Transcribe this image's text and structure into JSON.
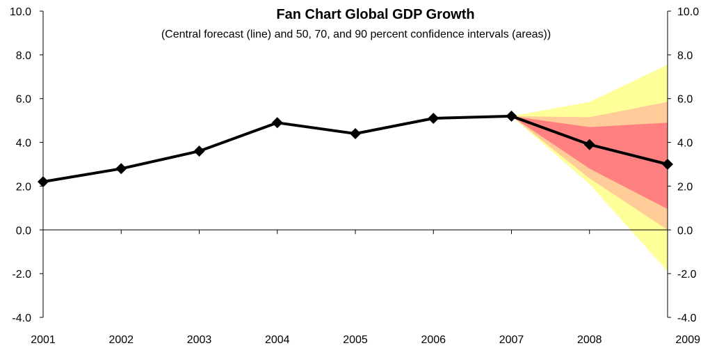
{
  "chart_data": {
    "type": "line",
    "title": "Fan Chart Global GDP Growth",
    "subtitle": "(Central forecast (line) and 50, 70, and 90 percent confidence intervals (areas))",
    "xlabel": "",
    "ylabel": "",
    "categories": [
      "2001",
      "2002",
      "2003",
      "2004",
      "2005",
      "2006",
      "2007",
      "2008",
      "2009"
    ],
    "ylim": [
      -4.0,
      10.0
    ],
    "y_ticks": [
      "-4.0",
      "-2.0",
      "0.0",
      "2.0",
      "4.0",
      "6.0",
      "8.0",
      "10.0"
    ],
    "y_tick_values": [
      -4,
      -2,
      0,
      2,
      4,
      6,
      8,
      10
    ],
    "secondary_y_axis": true,
    "grid": false,
    "series": [
      {
        "values": [
          2.2,
          2.8,
          3.6,
          4.9,
          4.4,
          5.1,
          5.2,
          3.9,
          3.0
        ]
      }
    ],
    "confidence_bands": [
      {
        "level": 90,
        "color": "#ffff99",
        "from_category": "2007",
        "lower": [
          5.2,
          2.1,
          -1.9
        ],
        "upper": [
          5.2,
          5.85,
          7.55
        ]
      },
      {
        "level": 70,
        "color": "#ffcc99",
        "from_category": "2007",
        "lower": [
          5.2,
          2.35,
          0.0
        ],
        "upper": [
          5.2,
          5.15,
          5.85
        ]
      },
      {
        "level": 50,
        "color": "#ff8080",
        "from_category": "2007",
        "lower": [
          5.2,
          2.8,
          0.95
        ],
        "upper": [
          5.2,
          4.7,
          4.9
        ]
      }
    ],
    "colors": {
      "line": "#000000",
      "marker": "#000000"
    }
  }
}
